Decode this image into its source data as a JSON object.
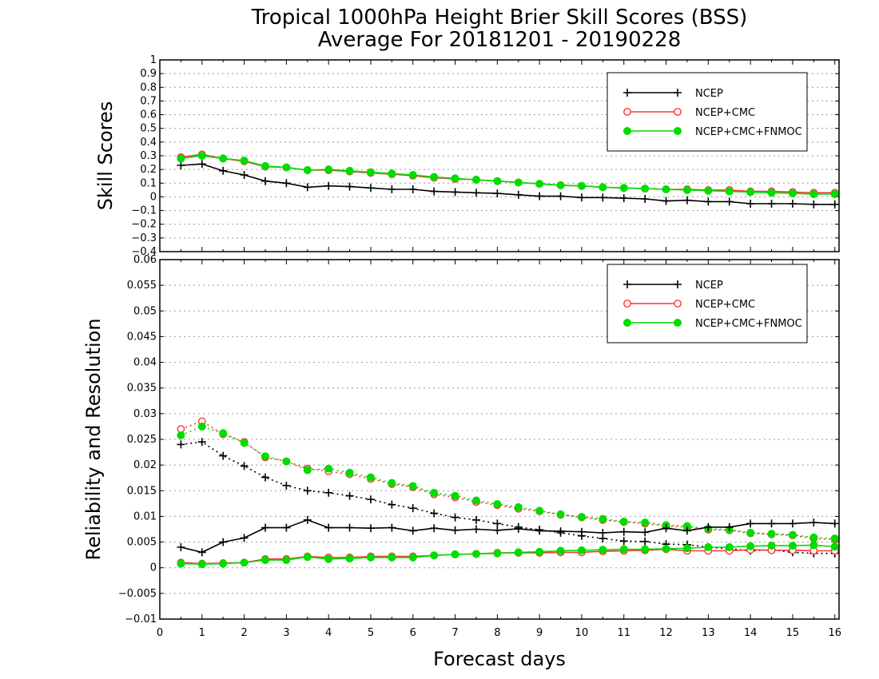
{
  "chart_data": {
    "title": "Tropical 1000hPa Height Brier Skill Scores (BSS)",
    "subtitle": "Average For 20181201 - 20190228",
    "xlabel": "Forecast days",
    "x_ticks": [
      0,
      1,
      2,
      3,
      4,
      5,
      6,
      7,
      8,
      9,
      10,
      11,
      12,
      13,
      14,
      15,
      16
    ],
    "xlim": [
      0,
      16.1
    ],
    "x": [
      0.5,
      1,
      1.5,
      2,
      2.5,
      3,
      3.5,
      4,
      4.5,
      5,
      5.5,
      6,
      6.5,
      7,
      7.5,
      8,
      8.5,
      9,
      9.5,
      10,
      10.5,
      11,
      11.5,
      12,
      12.5,
      13,
      13.5,
      14,
      14.5,
      15,
      15.5,
      16
    ],
    "colors": {
      "NCEP": "#000000",
      "NCEP+CMC": "#ff3333",
      "NCEP+CMC+FNMOC": "#00dd00"
    },
    "panels": [
      {
        "type": "line",
        "ylabel": "Skill Scores",
        "ylim": [
          -0.4,
          1
        ],
        "y_ticks": [
          "1",
          "0.9",
          "0.8",
          "0.7",
          "0.6",
          "0.5",
          "0.4",
          "0.3",
          "0.2",
          "0.1",
          "0",
          "−0.1",
          "−0.2",
          "−0.3",
          "−0.4"
        ],
        "grid": true,
        "legend": {
          "position": "top-right",
          "entries": [
            "NCEP",
            "NCEP+CMC",
            "NCEP+CMC+FNMOC"
          ]
        },
        "series": [
          {
            "name": "NCEP",
            "marker": "plus",
            "style": "solid",
            "values": [
              0.23,
              0.24,
              0.19,
              0.16,
              0.115,
              0.1,
              0.07,
              0.08,
              0.075,
              0.065,
              0.055,
              0.055,
              0.04,
              0.035,
              0.03,
              0.025,
              0.015,
              0.005,
              0.005,
              -0.005,
              -0.005,
              -0.01,
              -0.015,
              -0.03,
              -0.025,
              -0.035,
              -0.035,
              -0.05,
              -0.05,
              -0.05,
              -0.055,
              -0.055
            ]
          },
          {
            "name": "NCEP+CMC",
            "marker": "circle-open",
            "style": "solid",
            "values": [
              0.29,
              0.31,
              0.28,
              0.26,
              0.22,
              0.215,
              0.195,
              0.195,
              0.185,
              0.175,
              0.165,
              0.155,
              0.14,
              0.13,
              0.125,
              0.115,
              0.105,
              0.095,
              0.085,
              0.08,
              0.07,
              0.065,
              0.06,
              0.055,
              0.055,
              0.05,
              0.05,
              0.04,
              0.04,
              0.035,
              0.03,
              0.03
            ]
          },
          {
            "name": "NCEP+CMC+FNMOC",
            "marker": "circle-filled",
            "style": "solid",
            "values": [
              0.28,
              0.3,
              0.28,
              0.265,
              0.225,
              0.215,
              0.195,
              0.2,
              0.19,
              0.18,
              0.17,
              0.16,
              0.145,
              0.135,
              0.125,
              0.115,
              0.105,
              0.095,
              0.085,
              0.08,
              0.07,
              0.065,
              0.06,
              0.055,
              0.05,
              0.045,
              0.04,
              0.035,
              0.03,
              0.025,
              0.02,
              0.02
            ]
          }
        ]
      },
      {
        "type": "line",
        "ylabel": "Reliability and Resolution",
        "ylim": [
          -0.01,
          0.06
        ],
        "y_ticks": [
          "0.06",
          "0.055",
          "0.05",
          "0.045",
          "0.04",
          "0.035",
          "0.03",
          "0.025",
          "0.02",
          "0.015",
          "0.01",
          "0.005",
          "0",
          "−0.005",
          "−0.01"
        ],
        "grid": true,
        "legend": {
          "position": "top-right",
          "entries": [
            "NCEP",
            "NCEP+CMC",
            "NCEP+CMC+FNMOC"
          ]
        },
        "series": [
          {
            "name": "NCEP",
            "group": "resolution",
            "marker": "plus",
            "style": "dotted",
            "values": [
              0.024,
              0.0245,
              0.0218,
              0.0198,
              0.0176,
              0.016,
              0.015,
              0.0146,
              0.014,
              0.0133,
              0.0123,
              0.0116,
              0.0106,
              0.0098,
              0.0093,
              0.0086,
              0.0079,
              0.0074,
              0.0068,
              0.0062,
              0.0057,
              0.0052,
              0.0051,
              0.0046,
              0.0045,
              0.004,
              0.0037,
              0.0033,
              0.0035,
              0.003,
              0.0028,
              0.0028
            ]
          },
          {
            "name": "NCEP+CMC",
            "group": "resolution",
            "marker": "circle-open",
            "style": "dotted",
            "values": [
              0.027,
              0.0285,
              0.026,
              0.0245,
              0.0215,
              0.0207,
              0.0193,
              0.0188,
              0.0182,
              0.0173,
              0.0163,
              0.0157,
              0.0143,
              0.0137,
              0.0128,
              0.0122,
              0.0115,
              0.011,
              0.0103,
              0.0098,
              0.0093,
              0.0089,
              0.0086,
              0.0081,
              0.0079,
              0.0074,
              0.0073,
              0.0067,
              0.0065,
              0.0063,
              0.0057,
              0.0055
            ]
          },
          {
            "name": "NCEP+CMC+FNMOC",
            "group": "resolution",
            "marker": "circle-filled",
            "style": "dotted",
            "values": [
              0.0258,
              0.0275,
              0.0262,
              0.0243,
              0.0217,
              0.0207,
              0.019,
              0.0193,
              0.0185,
              0.0176,
              0.0165,
              0.0159,
              0.0146,
              0.014,
              0.0131,
              0.0124,
              0.0118,
              0.0111,
              0.0104,
              0.0099,
              0.0095,
              0.009,
              0.0088,
              0.0083,
              0.0081,
              0.0076,
              0.0074,
              0.0068,
              0.0066,
              0.0064,
              0.0059,
              0.0057
            ]
          },
          {
            "name": "NCEP",
            "group": "reliability",
            "marker": "plus",
            "style": "solid",
            "values": [
              0.004,
              0.003,
              0.005,
              0.0058,
              0.0078,
              0.0078,
              0.0093,
              0.0078,
              0.0078,
              0.0077,
              0.0078,
              0.0072,
              0.0077,
              0.0073,
              0.0075,
              0.0073,
              0.0076,
              0.0072,
              0.0071,
              0.007,
              0.0068,
              0.007,
              0.0069,
              0.0077,
              0.0072,
              0.0079,
              0.0079,
              0.0086,
              0.0086,
              0.0086,
              0.0088,
              0.0086
            ]
          },
          {
            "name": "NCEP+CMC",
            "group": "reliability",
            "marker": "circle-open",
            "style": "solid",
            "values": [
              0.001,
              0.0008,
              0.0009,
              0.001,
              0.0017,
              0.0017,
              0.0022,
              0.002,
              0.002,
              0.0022,
              0.0022,
              0.0022,
              0.0024,
              0.0026,
              0.0027,
              0.0029,
              0.0029,
              0.0029,
              0.003,
              0.003,
              0.0032,
              0.0033,
              0.0034,
              0.0036,
              0.0033,
              0.0033,
              0.0033,
              0.0035,
              0.0034,
              0.0034,
              0.0033,
              0.0033
            ]
          },
          {
            "name": "NCEP+CMC+FNMOC",
            "group": "reliability",
            "marker": "circle-filled",
            "style": "solid",
            "values": [
              0.0008,
              0.0007,
              0.0008,
              0.001,
              0.0015,
              0.0015,
              0.0021,
              0.0017,
              0.0018,
              0.002,
              0.002,
              0.002,
              0.0024,
              0.0026,
              0.0027,
              0.0028,
              0.003,
              0.0031,
              0.0033,
              0.0034,
              0.0035,
              0.0036,
              0.0036,
              0.0037,
              0.0038,
              0.004,
              0.004,
              0.0042,
              0.0043,
              0.0043,
              0.0044,
              0.0041
            ]
          }
        ]
      }
    ]
  }
}
